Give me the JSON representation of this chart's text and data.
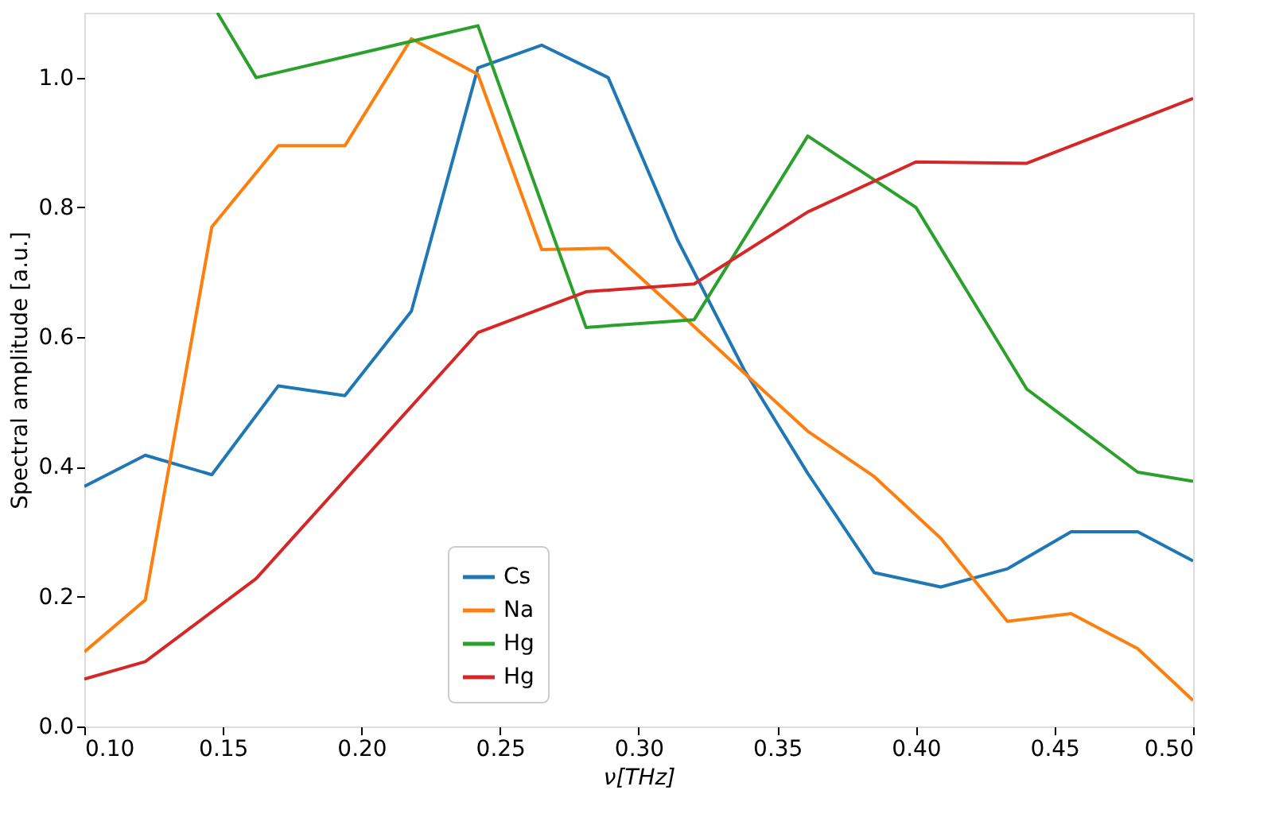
{
  "chart_data": {
    "type": "line",
    "xlabel": "ν[THz]",
    "ylabel": "Spectral amplitude  [a.u.]",
    "xlim": [
      0.1,
      0.5
    ],
    "ylim": [
      0,
      1.1
    ],
    "xticks": [
      {
        "value": 0.1,
        "label": "0.10"
      },
      {
        "value": 0.15,
        "label": "0.15"
      },
      {
        "value": 0.2,
        "label": "0.20"
      },
      {
        "value": 0.25,
        "label": "0.25"
      },
      {
        "value": 0.3,
        "label": "0.30"
      },
      {
        "value": 0.35,
        "label": "0.35"
      },
      {
        "value": 0.4,
        "label": "0.40"
      },
      {
        "value": 0.45,
        "label": "0.45"
      },
      {
        "value": 0.5,
        "label": "0.50"
      }
    ],
    "yticks": [
      {
        "value": 0,
        "label": "0.0"
      },
      {
        "value": 0.2,
        "label": "0.2"
      },
      {
        "value": 0.4,
        "label": "0.4"
      },
      {
        "value": 0.6,
        "label": "0.6"
      },
      {
        "value": 0.8,
        "label": "0.8"
      },
      {
        "value": 1.0,
        "label": "1.0"
      }
    ],
    "grid": false,
    "legend": "bottom",
    "marker": "none",
    "line_style": "solid",
    "series": [
      {
        "name": "Cs",
        "color": "#1f77b4",
        "x": [
          0.1,
          0.122,
          0.146,
          0.17,
          0.194,
          0.218,
          0.242,
          0.265,
          0.289,
          0.314,
          0.338,
          0.361,
          0.385,
          0.409,
          0.433,
          0.456,
          0.48,
          0.5
        ],
        "values": [
          0.37,
          0.418,
          0.388,
          0.525,
          0.51,
          0.64,
          1.015,
          1.05,
          1.0,
          0.75,
          0.55,
          0.39,
          0.237,
          0.215,
          0.243,
          0.3,
          0.3,
          0.255
        ]
      },
      {
        "name": "Na",
        "color": "#ff7f0e",
        "x": [
          0.1,
          0.122,
          0.146,
          0.17,
          0.194,
          0.218,
          0.242,
          0.265,
          0.289,
          0.314,
          0.338,
          0.361,
          0.385,
          0.409,
          0.433,
          0.456,
          0.48,
          0.5
        ],
        "values": [
          0.115,
          0.195,
          0.77,
          0.895,
          0.895,
          1.06,
          1.005,
          0.735,
          0.737,
          0.64,
          0.545,
          0.455,
          0.385,
          0.29,
          0.162,
          0.174,
          0.12,
          0.04
        ]
      },
      {
        "name": "Hg",
        "color": "#2ca02c",
        "x": [
          0.148,
          0.162,
          0.242,
          0.281,
          0.32,
          0.361,
          0.4,
          0.44,
          0.48,
          0.5
        ],
        "values": [
          1.1,
          1.0,
          1.08,
          0.615,
          0.627,
          0.91,
          0.8,
          0.52,
          0.392,
          0.378
        ]
      },
      {
        "name": "Hg",
        "color": "#d62728",
        "x": [
          0.1,
          0.122,
          0.162,
          0.242,
          0.281,
          0.32,
          0.361,
          0.4,
          0.44,
          0.5
        ],
        "values": [
          0.073,
          0.1,
          0.228,
          0.607,
          0.67,
          0.682,
          0.793,
          0.87,
          0.868,
          0.968
        ]
      }
    ]
  }
}
